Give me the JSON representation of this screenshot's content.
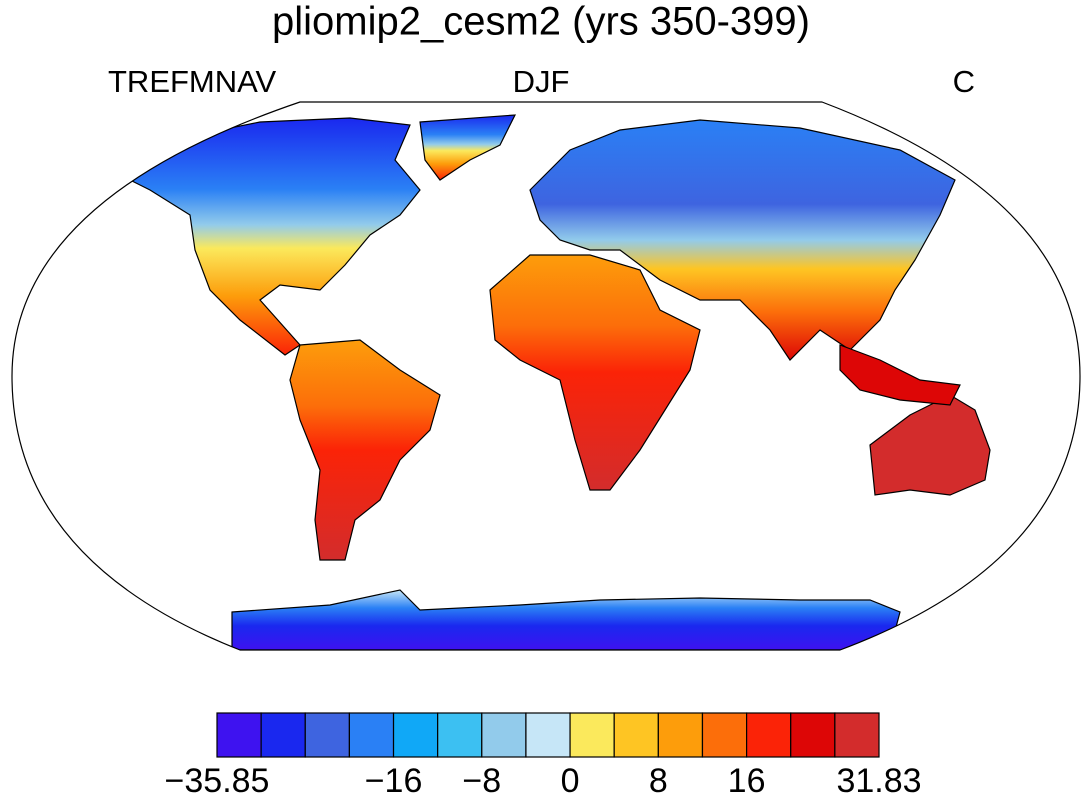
{
  "title": "pliomip2_cesm2 (yrs 350-399)",
  "left_label": "TREFMNAV",
  "center_label": "DJF",
  "right_label": "C",
  "colorbar": {
    "colors": [
      "#3e12f0",
      "#1a28ef",
      "#3e64e0",
      "#2a80f5",
      "#10a8f7",
      "#3cc0f2",
      "#92cbeb",
      "#c6e6f7",
      "#fbe95c",
      "#fec523",
      "#fd9d0b",
      "#fc6e0a",
      "#fb2307",
      "#dd0606",
      "#d32c2c"
    ],
    "levels": [
      {
        "value": -35.85,
        "label": "−35.85"
      },
      null,
      null,
      null,
      {
        "value": -16,
        "label": "−16"
      },
      null,
      {
        "value": -8,
        "label": "−8"
      },
      null,
      0,
      null,
      8,
      null,
      16,
      null,
      null,
      31.83
    ]
  }
}
